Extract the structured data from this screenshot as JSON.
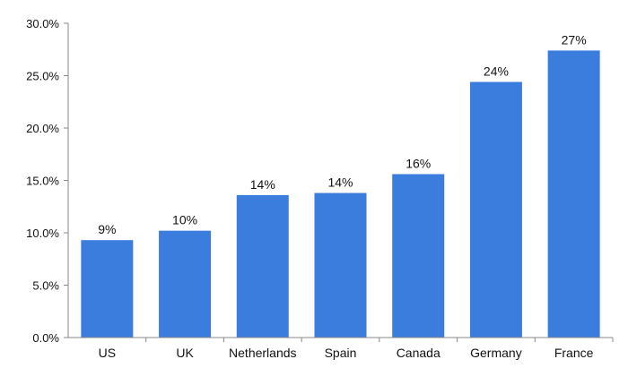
{
  "chart_data": {
    "type": "bar",
    "title": "",
    "xlabel": "",
    "ylabel": "",
    "categories": [
      "US",
      "UK",
      "Netherlands",
      "Spain",
      "Canada",
      "Germany",
      "France"
    ],
    "values": [
      9.3,
      10.2,
      13.6,
      13.8,
      15.6,
      24.4,
      27.4
    ],
    "data_labels": [
      "9%",
      "10%",
      "14%",
      "14%",
      "16%",
      "24%",
      "27%"
    ],
    "ylim": [
      0,
      30
    ],
    "y_ticks": [
      {
        "value": 0,
        "label": "0.0%"
      },
      {
        "value": 5,
        "label": "5.0%"
      },
      {
        "value": 10,
        "label": "10.0%"
      },
      {
        "value": 15,
        "label": "15.0%"
      },
      {
        "value": 20,
        "label": "20.0%"
      },
      {
        "value": 25,
        "label": "25.0%"
      },
      {
        "value": 30,
        "label": "30.0%"
      }
    ],
    "grid": false,
    "legend": "none",
    "bar_color": "#3b7ddd",
    "axis_color": "#888888"
  }
}
